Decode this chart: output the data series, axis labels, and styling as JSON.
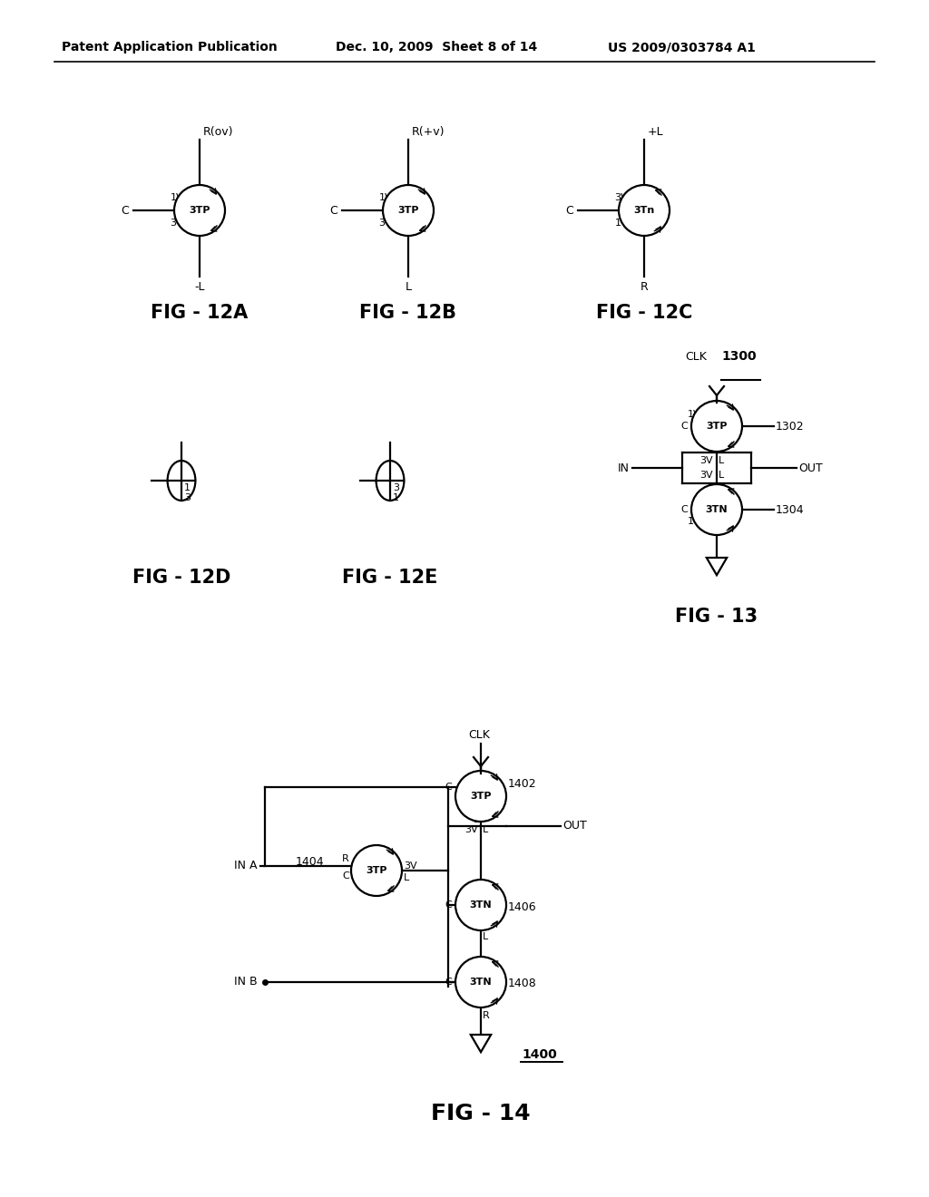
{
  "background": "#ffffff",
  "header_left": "Patent Application Publication",
  "header_mid": "Dec. 10, 2009  Sheet 8 of 14",
  "header_right": "US 2009/0303784 A1",
  "lw": 1.6
}
